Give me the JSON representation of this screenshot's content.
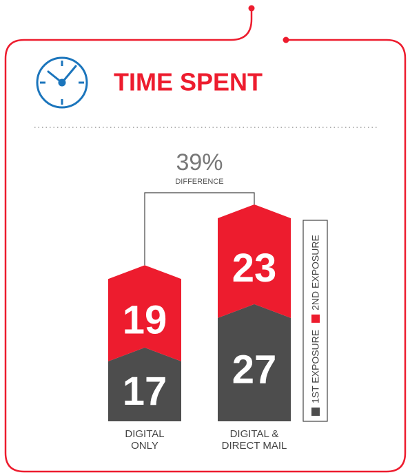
{
  "chart_data": {
    "type": "bar",
    "stacked": true,
    "title": "TIME SPENT",
    "categories": [
      "DIGITAL ONLY",
      "DIGITAL & DIRECT MAIL"
    ],
    "series": [
      {
        "name": "1ST EXPOSURE",
        "color": "#4d4d4d",
        "values": [
          17,
          27
        ]
      },
      {
        "name": "2ND EXPOSURE",
        "color": "#ed1c2e",
        "values": [
          19,
          23
        ]
      }
    ],
    "annotation": {
      "value": 39,
      "label": "39%",
      "text": "DIFFERENCE"
    }
  }
}
